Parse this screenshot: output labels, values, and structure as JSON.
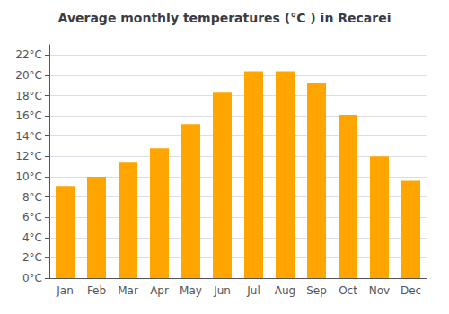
{
  "chart_data": {
    "type": "bar",
    "title": "Average monthly temperatures (°C ) in Recarei",
    "categories": [
      "Jan",
      "Feb",
      "Mar",
      "Apr",
      "May",
      "Jun",
      "Jul",
      "Aug",
      "Sep",
      "Oct",
      "Nov",
      "Dec"
    ],
    "values": [
      9.1,
      10.0,
      11.4,
      12.8,
      15.2,
      18.3,
      20.4,
      20.4,
      19.2,
      16.1,
      12.0,
      9.6
    ],
    "color": "#FFA500",
    "ylim": [
      0,
      23
    ],
    "yticks": [
      {
        "value": 0,
        "label": "0°C"
      },
      {
        "value": 2,
        "label": "2°C"
      },
      {
        "value": 4,
        "label": "4°C"
      },
      {
        "value": 6,
        "label": "6°C"
      },
      {
        "value": 8,
        "label": "8°C"
      },
      {
        "value": 10,
        "label": "10°C"
      },
      {
        "value": 12,
        "label": "12°C"
      },
      {
        "value": 14,
        "label": "14°C"
      },
      {
        "value": 16,
        "label": "16°C"
      },
      {
        "value": 18,
        "label": "18°C"
      },
      {
        "value": 20,
        "label": "20°C"
      },
      {
        "value": 22,
        "label": "22°C"
      }
    ],
    "grid": true
  }
}
